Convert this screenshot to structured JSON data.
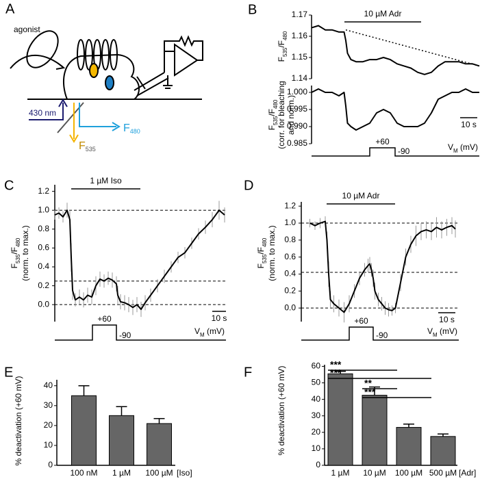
{
  "diagram": {
    "label": "A",
    "agonist": "agonist",
    "excitation": "430 nm",
    "emission_blue": [
      "F",
      "480"
    ],
    "emission_yellow": [
      "F",
      "535"
    ]
  },
  "chart_data": [
    {
      "type": "line",
      "panel": "B",
      "ylabel": [
        [
          {
            "text": "F"
          },
          {
            "text": "535",
            "sub": true
          },
          {
            "text": "/F"
          },
          {
            "text": "480",
            "sub": true
          }
        ]
      ],
      "xlim": [
        0,
        98
      ],
      "ylim": [
        1.14,
        1.17
      ],
      "yticks": [
        1.14,
        1.15,
        1.16,
        1.17
      ],
      "stimulus": {
        "label": "10 µM Adr",
        "x": [
          19.2,
          64
        ]
      },
      "series": [
        {
          "color": "#000000",
          "x": [
            0,
            4,
            8,
            12,
            16,
            19,
            20,
            21,
            23,
            26,
            30,
            34,
            38,
            42,
            46,
            50,
            54,
            58,
            62,
            66,
            70,
            74,
            78,
            82,
            86,
            90,
            94,
            98
          ],
          "values": [
            1.164,
            1.165,
            1.163,
            1.163,
            1.162,
            1.162,
            1.158,
            1.152,
            1.149,
            1.148,
            1.148,
            1.149,
            1.149,
            1.15,
            1.149,
            1.147,
            1.146,
            1.145,
            1.143,
            1.142,
            1.143,
            1.146,
            1.148,
            1.148,
            1.148,
            1.147,
            1.147,
            1.146
          ]
        },
        {
          "color": "#000000",
          "dash": true,
          "x": [
            20,
            98
          ],
          "values": [
            1.163,
            1.146
          ]
        }
      ]
    },
    {
      "type": "line",
      "ylabel": [
        [
          {
            "text": "F"
          },
          {
            "text": "535",
            "sub": true
          },
          {
            "text": "/F"
          },
          {
            "text": "480",
            "sub": true
          }
        ],
        [
          {
            "text": "(corr. for bleaching"
          }
        ],
        [
          {
            "text": "and norm.)"
          }
        ]
      ],
      "xlim": [
        0,
        98
      ],
      "ylim": [
        0.985,
        1.002
      ],
      "yticks": [
        {
          "value": 0.985,
          "label": "0.985"
        },
        {
          "value": 0.99,
          "label": "0.990"
        },
        {
          "value": 0.995,
          "label": "0.995"
        },
        {
          "value": 1,
          "label": "1.000"
        }
      ],
      "scalebar": {
        "label": "10 s",
        "x": [
          86.8,
          96.8
        ]
      },
      "protocol": {
        "x": [
          34,
          48.8
        ],
        "high": "+60",
        "low": "-90",
        "unit": [
          {
            "text": "V"
          },
          {
            "text": "M",
            "sub": true
          },
          {
            "text": " (mV)"
          }
        ]
      },
      "series": [
        {
          "color": "#000000",
          "x": [
            0,
            4,
            8,
            12,
            16,
            19,
            20,
            21,
            23,
            26,
            30,
            34,
            38,
            42,
            46,
            50,
            54,
            58,
            62,
            66,
            70,
            74,
            78,
            82,
            86,
            90,
            94,
            98
          ],
          "values": [
            1.0,
            1.001,
            1.0,
            1.0,
            0.999,
            1.0,
            0.996,
            0.991,
            0.99,
            0.989,
            0.99,
            0.991,
            0.994,
            0.995,
            0.994,
            0.991,
            0.99,
            0.99,
            0.99,
            0.991,
            0.994,
            0.998,
            0.999,
            1.0,
            1.0,
            1.001,
            1.0,
            1.0
          ]
        }
      ]
    },
    {
      "type": "line",
      "panel": "C",
      "ylabel": [
        [
          {
            "text": "F"
          },
          {
            "text": "535",
            "sub": true
          },
          {
            "text": "/F"
          },
          {
            "text": "480",
            "sub": true
          }
        ],
        [
          {
            "text": "(norm. to max.)"
          }
        ]
      ],
      "xlim": [
        0,
        125
      ],
      "ylim": [
        -0.18,
        1.27
      ],
      "yticks": [
        {
          "value": 0,
          "label": "0.0"
        },
        0.2,
        0.4,
        0.6,
        0.8,
        {
          "value": 1,
          "label": "1.0"
        },
        1.2
      ],
      "hlines": [
        1.0,
        0.25,
        0.0
      ],
      "stimulus": {
        "label": "1 µM Iso",
        "x": [
          12,
          62.5
        ]
      },
      "scalebar": {
        "label": "10 s",
        "x": [
          115,
          125
        ]
      },
      "protocol": {
        "x": [
          27.5,
          45
        ],
        "high": "+60",
        "low": "-90",
        "unit": [
          {
            "text": "V"
          },
          {
            "text": "M",
            "sub": true
          },
          {
            "text": " (mV)"
          }
        ]
      },
      "series": [
        {
          "color": "#000000",
          "error_color": "#999999",
          "x": [
            0,
            3,
            6,
            9,
            11,
            12,
            13,
            15,
            18,
            21,
            24,
            27,
            30,
            33,
            36,
            39,
            42,
            45,
            46,
            48,
            51,
            54,
            57,
            60,
            63,
            66,
            70,
            75,
            80,
            85,
            90,
            95,
            100,
            105,
            110,
            115,
            120,
            124
          ],
          "values": [
            0.95,
            0.97,
            0.93,
            1.0,
            0.9,
            0.5,
            0.15,
            0.05,
            0.08,
            0.05,
            0.1,
            0.08,
            0.2,
            0.27,
            0.25,
            0.28,
            0.26,
            0.22,
            0.1,
            0.03,
            0.02,
            0.0,
            -0.03,
            0.0,
            -0.05,
            0.02,
            0.1,
            0.2,
            0.3,
            0.4,
            0.5,
            0.55,
            0.65,
            0.75,
            0.82,
            0.9,
            1.0,
            0.95
          ],
          "errors": [
            0.05,
            0.06,
            0.06,
            0.08,
            0.1,
            0.15,
            0.1,
            0.07,
            0.08,
            0.08,
            0.08,
            0.08,
            0.1,
            0.08,
            0.07,
            0.07,
            0.08,
            0.08,
            0.1,
            0.08,
            0.08,
            0.08,
            0.08,
            0.08,
            0.08,
            0.08,
            0.07,
            0.07,
            0.07,
            0.06,
            0.06,
            0.06,
            0.06,
            0.06,
            0.07,
            0.08,
            0.1,
            0.08
          ]
        }
      ]
    },
    {
      "type": "line",
      "panel": "D",
      "ylabel": [
        [
          {
            "text": "F"
          },
          {
            "text": "535",
            "sub": true
          },
          {
            "text": "/F"
          },
          {
            "text": "480",
            "sub": true
          }
        ],
        [
          {
            "text": "(norm. to max.)"
          }
        ]
      ],
      "xlim": [
        0,
        92
      ],
      "ylim": [
        -0.16,
        1.25
      ],
      "yticks": [
        {
          "value": 0,
          "label": "0.0"
        },
        0.2,
        0.4,
        0.6,
        0.8,
        {
          "value": 1,
          "label": "1.0"
        },
        1.2
      ],
      "hlines": [
        1.0,
        0.42,
        0.0
      ],
      "stimulus": {
        "label": "10 µM Adr",
        "x": [
          14.8,
          54.8
        ]
      },
      "scalebar": {
        "label": "10 s",
        "x": [
          80,
          90
        ]
      },
      "protocol": {
        "x": [
          28,
          42
        ],
        "high": "+60",
        "low": "-90",
        "unit": [
          {
            "text": "V"
          },
          {
            "text": "M",
            "sub": true
          },
          {
            "text": " (mV)"
          }
        ]
      },
      "series": [
        {
          "color": "#000000",
          "error_color": "#999999",
          "x": [
            5,
            8,
            11,
            14,
            15,
            16,
            17,
            19,
            22,
            25,
            28,
            31,
            34,
            37,
            39,
            40,
            41,
            42,
            43,
            45,
            47,
            49,
            51,
            53,
            55,
            58,
            61,
            64,
            67,
            70,
            73,
            76,
            79,
            82,
            85,
            88,
            90
          ],
          "values": [
            1.0,
            0.97,
            1.0,
            1.02,
            0.8,
            0.4,
            0.1,
            0.05,
            0.0,
            -0.05,
            0.05,
            0.2,
            0.35,
            0.45,
            0.5,
            0.52,
            0.45,
            0.35,
            0.2,
            0.1,
            0.05,
            0.0,
            -0.02,
            -0.03,
            0.0,
            0.3,
            0.6,
            0.75,
            0.85,
            0.9,
            0.92,
            0.9,
            0.95,
            0.92,
            0.95,
            0.97,
            0.93
          ],
          "errors": [
            0.05,
            0.05,
            0.06,
            0.06,
            0.1,
            0.15,
            0.1,
            0.1,
            0.1,
            0.12,
            0.1,
            0.08,
            0.08,
            0.08,
            0.08,
            0.08,
            0.08,
            0.1,
            0.1,
            0.08,
            0.08,
            0.08,
            0.08,
            0.06,
            0.06,
            0.1,
            0.1,
            0.1,
            0.12,
            0.1,
            0.1,
            0.1,
            0.12,
            0.1,
            0.1,
            0.1,
            0.1
          ]
        }
      ]
    },
    {
      "type": "bar",
      "panel": "E",
      "ylabel": [
        [
          {
            "text": "% deactivation (+60 mV)"
          }
        ]
      ],
      "categories": [
        "100 nM",
        "1 µM",
        "100 µM"
      ],
      "xlabel": "[Iso]",
      "values": [
        35,
        25,
        21
      ],
      "errors": [
        5,
        4.5,
        2.5
      ],
      "color": "#666666",
      "ylim": [
        0,
        43
      ],
      "yticks": [
        0,
        10,
        20,
        30,
        40
      ]
    },
    {
      "type": "bar",
      "panel": "F",
      "ylabel": [
        [
          {
            "text": "% deactivation (+60 mV)"
          }
        ]
      ],
      "categories": [
        "1 µM",
        "10 µM",
        "100 µM",
        "500 µM"
      ],
      "xlabel": "[Adr]",
      "values": [
        55.5,
        42.5,
        23,
        17.5
      ],
      "errors": [
        1.5,
        5,
        2,
        1.5
      ],
      "color": "#666666",
      "ylim": [
        0,
        61
      ],
      "yticks": [
        0,
        10,
        20,
        30,
        40,
        50,
        60
      ],
      "significance": [
        {
          "label": "***",
          "from": 0,
          "to": 2
        },
        {
          "label": "***",
          "from": 0,
          "to": 3
        },
        {
          "label": "**",
          "from": 1,
          "to": 2
        },
        {
          "label": "***",
          "from": 1,
          "to": 3
        }
      ]
    }
  ]
}
